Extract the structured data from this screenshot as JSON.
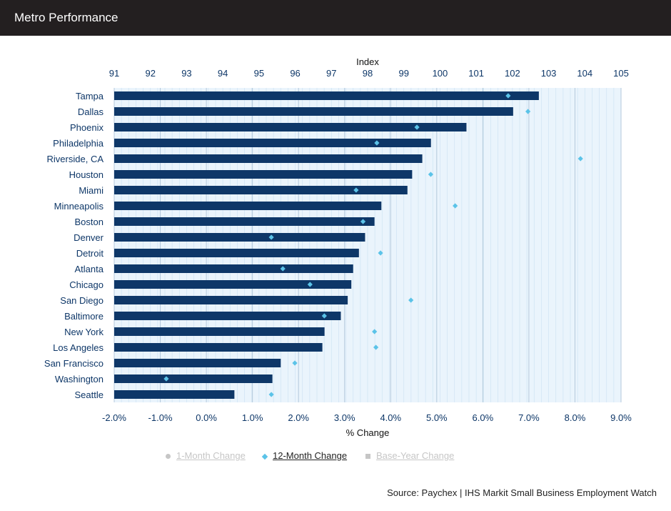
{
  "header": {
    "title": "Metro Performance"
  },
  "legend": {
    "items": [
      {
        "label": "1-Month Change",
        "symbol": "circle-icon",
        "active": false
      },
      {
        "label": "12-Month Change",
        "symbol": "diamond-icon",
        "active": true
      },
      {
        "label": "Base-Year Change",
        "symbol": "square-icon",
        "active": false
      }
    ]
  },
  "source": "Source: Paychex | IHS Markit Small Business Employment Watch",
  "colors": {
    "bar": "#0e3768",
    "marker": "#5bc3e8",
    "plot_bg": "#eaf4fc",
    "axis_text": "#0e3768",
    "header_bg": "#231f20"
  },
  "chart_data": {
    "type": "bar",
    "orientation": "horizontal",
    "title": "",
    "top_axis": {
      "label": "Index",
      "range": [
        91,
        105
      ],
      "ticks": [
        91,
        92,
        93,
        94,
        95,
        96,
        97,
        98,
        99,
        100,
        101,
        102,
        103,
        104,
        105
      ]
    },
    "bottom_axis": {
      "label": "% Change",
      "range": [
        -2.0,
        9.0
      ],
      "ticks": [
        "-2.0%",
        "-1.0%",
        "0.0%",
        "1.0%",
        "2.0%",
        "3.0%",
        "4.0%",
        "5.0%",
        "6.0%",
        "7.0%",
        "8.0%",
        "9.0%"
      ]
    },
    "categories": [
      "Tampa",
      "Dallas",
      "Phoenix",
      "Philadelphia",
      "Riverside, CA",
      "Houston",
      "Miami",
      "Minneapolis",
      "Boston",
      "Denver",
      "Detroit",
      "Atlanta",
      "Chicago",
      "San Diego",
      "Baltimore",
      "New York",
      "Los Angeles",
      "San Francisco",
      "Washington",
      "Seattle"
    ],
    "series": [
      {
        "name": "Index",
        "axis": "top",
        "type": "bar",
        "values": [
          102.73,
          102.02,
          100.73,
          99.75,
          99.51,
          99.23,
          99.1,
          98.38,
          98.19,
          97.93,
          97.76,
          97.6,
          97.55,
          97.45,
          97.26,
          96.81,
          96.75,
          95.6,
          95.37,
          94.32
        ]
      },
      {
        "name": "12-Month Change",
        "axis": "bottom",
        "type": "scatter",
        "values": [
          6.55,
          6.98,
          4.57,
          3.7,
          8.12,
          4.87,
          3.25,
          5.4,
          3.4,
          1.41,
          3.78,
          1.66,
          2.25,
          4.44,
          2.56,
          3.65,
          3.68,
          1.92,
          -0.87,
          1.41
        ]
      }
    ],
    "grid": true,
    "legend_position": "bottom"
  }
}
